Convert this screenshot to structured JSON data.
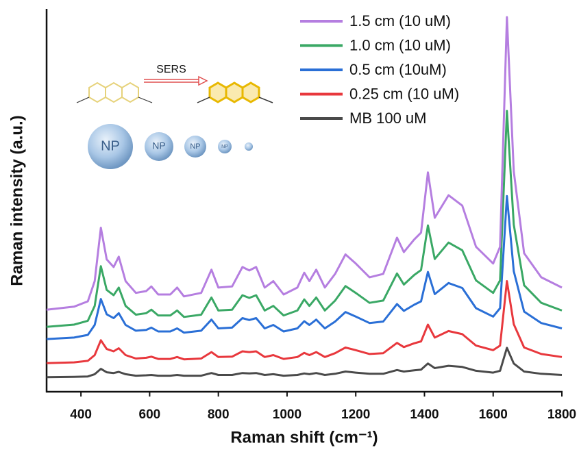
{
  "chart_data": {
    "type": "line",
    "xlabel": "Raman shift (cm⁻¹)",
    "ylabel": "Raman intensity (a.u.)",
    "xlim": [
      300,
      1800
    ],
    "xticks": [
      400,
      600,
      800,
      1000,
      1200,
      1400,
      1600,
      1800
    ],
    "ylim": [
      0,
      100
    ],
    "legend": "upper right",
    "annotations": {
      "arrow": "SERS",
      "particles": [
        "NP",
        "NP",
        "NP",
        "NP"
      ]
    },
    "x": [
      300,
      380,
      420,
      440,
      458,
      475,
      495,
      510,
      530,
      560,
      590,
      605,
      625,
      660,
      680,
      700,
      750,
      780,
      800,
      840,
      870,
      890,
      910,
      935,
      960,
      990,
      1030,
      1050,
      1065,
      1085,
      1110,
      1140,
      1170,
      1200,
      1240,
      1280,
      1320,
      1340,
      1370,
      1390,
      1410,
      1430,
      1470,
      1510,
      1550,
      1600,
      1620,
      1640,
      1660,
      1690,
      1740,
      1800
    ],
    "series": [
      {
        "name": "1.5 cm (10 uM)",
        "color": "#b57ee0",
        "values": [
          21.5,
          22.3,
          23.7,
          29,
          43,
          34.7,
          32.7,
          35.4,
          29,
          25.9,
          26.4,
          27.6,
          25.5,
          25.5,
          27.3,
          25,
          25.9,
          32,
          27.3,
          27.6,
          32.7,
          31.8,
          32.7,
          27.3,
          29,
          25.5,
          27.3,
          31.2,
          29,
          32,
          27.3,
          30.9,
          36,
          33.6,
          30,
          30.9,
          40.4,
          36.6,
          39.9,
          41.7,
          57.5,
          45.6,
          51.5,
          48.8,
          38,
          33.6,
          38,
          98.2,
          57.8,
          36.3,
          30,
          27.3
        ]
      },
      {
        "name": "1.0 cm (10 uM)",
        "color": "#3aa865",
        "values": [
          17.0,
          17.6,
          18.6,
          22.5,
          32.9,
          26.7,
          25.3,
          27.3,
          22.5,
          20.2,
          20.6,
          21.5,
          20.0,
          20.0,
          21.3,
          19.6,
          20.2,
          24.7,
          21.3,
          21.5,
          25.3,
          24.6,
          25.3,
          21.3,
          22.5,
          20.0,
          21.3,
          24.2,
          22.5,
          24.7,
          21.3,
          23.9,
          27.7,
          25.9,
          23.3,
          23.9,
          31.0,
          28.1,
          30.6,
          31.9,
          43.6,
          34.8,
          39.1,
          37.1,
          29.2,
          25.9,
          29.2,
          73.6,
          43.8,
          27.9,
          23.3,
          21.3
        ]
      },
      {
        "name": "0.5 cm (10uM)",
        "color": "#2a6fd6",
        "values": [
          13.8,
          14.2,
          14.9,
          17.5,
          24.3,
          20.3,
          19.3,
          20.6,
          17.5,
          16.0,
          16.2,
          16.8,
          15.8,
          15.8,
          16.6,
          15.5,
          16.0,
          18.9,
          16.6,
          16.8,
          19.3,
          18.8,
          19.3,
          16.6,
          17.5,
          15.8,
          16.6,
          18.5,
          17.5,
          18.9,
          16.6,
          18.4,
          20.9,
          19.7,
          18.0,
          18.4,
          23.0,
          21.2,
          22.8,
          23.7,
          31.4,
          25.6,
          28.5,
          27.2,
          21.9,
          19.7,
          21.9,
          51.3,
          31.6,
          21.0,
          18.0,
          16.6
        ]
      },
      {
        "name": "0.25 cm (10 uM)",
        "color": "#e8383d",
        "values": [
          7.5,
          7.7,
          8.1,
          9.6,
          13.5,
          11.2,
          10.6,
          11.4,
          9.6,
          8.7,
          8.9,
          9.2,
          8.6,
          8.6,
          9.1,
          8.5,
          8.7,
          10.4,
          9.1,
          9.2,
          10.6,
          10.4,
          10.6,
          9.1,
          9.6,
          8.6,
          9.1,
          10.2,
          9.6,
          10.4,
          9.1,
          10.1,
          11.6,
          10.9,
          9.9,
          10.1,
          12.8,
          11.7,
          12.7,
          13.2,
          17.6,
          14.2,
          15.9,
          15.1,
          12.1,
          10.9,
          12.1,
          29.0,
          17.7,
          11.6,
          9.9,
          9.1
        ]
      },
      {
        "name": "MB 100 uM",
        "color": "#4a4a4a",
        "values": [
          3.8,
          3.9,
          4.0,
          4.6,
          6.0,
          5.1,
          4.9,
          5.2,
          4.6,
          4.2,
          4.3,
          4.4,
          4.2,
          4.2,
          4.4,
          4.2,
          4.2,
          4.9,
          4.4,
          4.4,
          4.9,
          4.8,
          4.9,
          4.4,
          4.6,
          4.2,
          4.4,
          4.8,
          4.6,
          4.9,
          4.4,
          4.7,
          5.3,
          5.0,
          4.7,
          4.7,
          5.7,
          5.3,
          5.6,
          5.8,
          7.4,
          6.2,
          6.8,
          6.5,
          5.5,
          5.0,
          5.5,
          11.5,
          7.4,
          5.3,
          4.7,
          4.4
        ]
      }
    ]
  }
}
